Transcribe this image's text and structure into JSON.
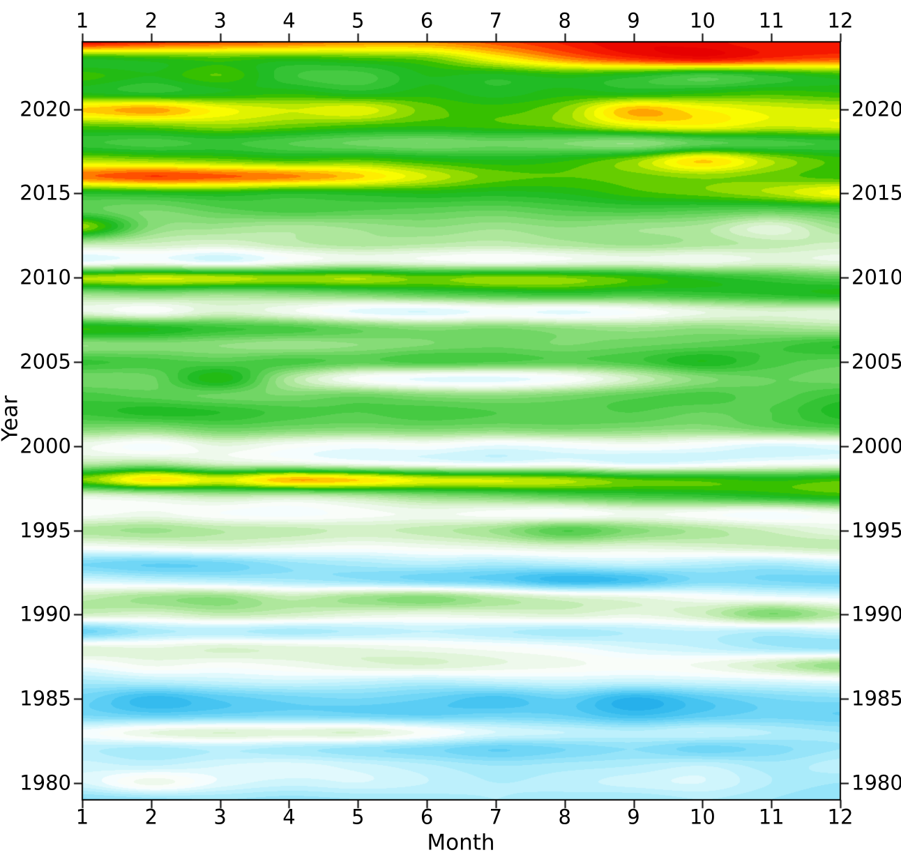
{
  "axes": {
    "x_label": "Month",
    "y_label": "Year",
    "x_tick_labels": [
      "1",
      "2",
      "3",
      "4",
      "5",
      "6",
      "7",
      "8",
      "9",
      "10",
      "11",
      "12"
    ],
    "y_tick_labels": [
      "1980",
      "1985",
      "1990",
      "1995",
      "2000",
      "2005",
      "2010",
      "2015",
      "2020"
    ],
    "y_tick_years": [
      1980,
      1985,
      1990,
      1995,
      2000,
      2005,
      2010,
      2015,
      2020
    ]
  },
  "chart_data": {
    "type": "heatmap",
    "xlabel": "Month",
    "ylabel": "Year",
    "x": [
      1,
      2,
      3,
      4,
      5,
      6,
      7,
      8,
      9,
      10,
      11,
      12
    ],
    "xlim": [
      1,
      12
    ],
    "ylim": [
      1979,
      2024
    ],
    "years": [
      1979,
      1980,
      1981,
      1982,
      1983,
      1984,
      1985,
      1986,
      1987,
      1988,
      1989,
      1990,
      1991,
      1992,
      1993,
      1994,
      1995,
      1996,
      1997,
      1998,
      1999,
      2000,
      2001,
      2002,
      2003,
      2004,
      2005,
      2006,
      2007,
      2008,
      2009,
      2010,
      2011,
      2012,
      2013,
      2014,
      2015,
      2016,
      2017,
      2018,
      2019,
      2020,
      2021,
      2022,
      2023,
      2024
    ],
    "values": [
      [
        -0.25,
        -0.22,
        -0.2,
        -0.22,
        -0.2,
        -0.18,
        -0.16,
        -0.18,
        -0.2,
        -0.16,
        -0.2,
        -0.24
      ],
      [
        -0.08,
        0.06,
        -0.05,
        -0.1,
        -0.08,
        -0.12,
        -0.16,
        -0.14,
        -0.1,
        -0.08,
        -0.16,
        -0.2
      ],
      [
        -0.1,
        -0.12,
        -0.08,
        -0.06,
        -0.1,
        -0.15,
        -0.2,
        -0.18,
        -0.16,
        -0.12,
        -0.18,
        -0.14
      ],
      [
        -0.15,
        -0.18,
        -0.15,
        -0.18,
        -0.22,
        -0.26,
        -0.32,
        -0.28,
        -0.24,
        -0.3,
        -0.26,
        -0.2
      ],
      [
        -0.02,
        0.08,
        0.12,
        0.1,
        0.12,
        0.02,
        -0.08,
        -0.12,
        -0.15,
        -0.12,
        -0.16,
        -0.2
      ],
      [
        -0.28,
        -0.32,
        -0.3,
        -0.28,
        -0.3,
        -0.32,
        -0.3,
        -0.32,
        -0.4,
        -0.34,
        -0.3,
        -0.32
      ],
      [
        -0.3,
        -0.42,
        -0.35,
        -0.3,
        -0.28,
        -0.32,
        -0.38,
        -0.32,
        -0.45,
        -0.35,
        -0.28,
        -0.25
      ],
      [
        -0.18,
        -0.15,
        -0.12,
        -0.1,
        -0.12,
        -0.15,
        -0.12,
        -0.1,
        -0.12,
        -0.1,
        -0.08,
        -0.05
      ],
      [
        -0.02,
        0.05,
        0.02,
        0.05,
        0.1,
        0.12,
        0.08,
        0.05,
        0.02,
        0.05,
        0.15,
        0.28
      ],
      [
        0.1,
        0.08,
        0.12,
        0.1,
        0.08,
        0.05,
        0.02,
        -0.02,
        -0.08,
        -0.12,
        -0.18,
        -0.22
      ],
      [
        -0.3,
        -0.18,
        -0.15,
        -0.18,
        -0.15,
        -0.12,
        -0.15,
        -0.18,
        -0.15,
        -0.12,
        -0.15,
        -0.1
      ],
      [
        0.15,
        0.12,
        0.18,
        0.15,
        0.1,
        0.08,
        0.1,
        0.12,
        0.08,
        0.15,
        0.32,
        0.2
      ],
      [
        0.18,
        0.25,
        0.28,
        0.18,
        0.25,
        0.3,
        0.2,
        0.12,
        0.08,
        0.02,
        -0.02,
        -0.05
      ],
      [
        -0.08,
        -0.12,
        -0.15,
        -0.18,
        -0.22,
        -0.28,
        -0.32,
        -0.42,
        -0.38,
        -0.26,
        -0.28,
        -0.3
      ],
      [
        -0.28,
        -0.32,
        -0.3,
        -0.22,
        -0.18,
        -0.15,
        -0.18,
        -0.15,
        -0.12,
        -0.15,
        -0.18,
        -0.12
      ],
      [
        0.02,
        0.05,
        0.08,
        0.05,
        0.02,
        0.05,
        0.08,
        0.12,
        0.1,
        0.12,
        0.15,
        0.18
      ],
      [
        0.22,
        0.25,
        0.2,
        0.18,
        0.15,
        0.18,
        0.25,
        0.4,
        0.3,
        0.22,
        0.15,
        0.08
      ],
      [
        0.02,
        0.05,
        0.0,
        -0.02,
        0.02,
        0.05,
        0.02,
        0.0,
        0.05,
        0.02,
        -0.02,
        0.05
      ],
      [
        0.08,
        0.12,
        0.18,
        0.15,
        0.2,
        0.28,
        0.32,
        0.38,
        0.42,
        0.45,
        0.5,
        0.55
      ],
      [
        0.64,
        0.84,
        0.74,
        0.88,
        0.84,
        0.74,
        0.72,
        0.68,
        0.6,
        0.58,
        0.54,
        0.58
      ],
      [
        0.18,
        0.22,
        0.12,
        0.08,
        0.02,
        -0.02,
        -0.05,
        -0.02,
        -0.08,
        -0.05,
        0.0,
        0.02
      ],
      [
        0.05,
        -0.02,
        0.08,
        0.02,
        -0.02,
        0.0,
        -0.05,
        -0.02,
        0.02,
        -0.02,
        -0.08,
        -0.05
      ],
      [
        0.3,
        0.28,
        0.35,
        0.32,
        0.3,
        0.32,
        0.3,
        0.32,
        0.3,
        0.28,
        0.34,
        0.38
      ],
      [
        0.45,
        0.5,
        0.48,
        0.42,
        0.4,
        0.42,
        0.4,
        0.38,
        0.4,
        0.36,
        0.4,
        0.5
      ],
      [
        0.42,
        0.38,
        0.35,
        0.32,
        0.35,
        0.3,
        0.28,
        0.32,
        0.38,
        0.42,
        0.38,
        0.45
      ],
      [
        0.32,
        0.35,
        0.55,
        0.22,
        0.02,
        -0.05,
        -0.06,
        0.0,
        0.15,
        0.3,
        0.36,
        0.34
      ],
      [
        0.45,
        0.42,
        0.4,
        0.42,
        0.38,
        0.42,
        0.4,
        0.38,
        0.42,
        0.52,
        0.42,
        0.38
      ],
      [
        0.28,
        0.3,
        0.28,
        0.25,
        0.28,
        0.32,
        0.35,
        0.32,
        0.35,
        0.38,
        0.42,
        0.48
      ],
      [
        0.56,
        0.52,
        0.45,
        0.42,
        0.35,
        0.3,
        0.32,
        0.28,
        0.25,
        0.28,
        0.25,
        0.22
      ],
      [
        0.08,
        0.02,
        0.12,
        0.05,
        -0.05,
        -0.08,
        -0.02,
        -0.05,
        0.0,
        0.08,
        0.12,
        0.1
      ],
      [
        0.25,
        0.28,
        0.25,
        0.28,
        0.32,
        0.38,
        0.42,
        0.45,
        0.42,
        0.45,
        0.48,
        0.52
      ],
      [
        0.68,
        0.72,
        0.7,
        0.66,
        0.68,
        0.62,
        0.66,
        0.64,
        0.58,
        0.5,
        0.44,
        0.38
      ],
      [
        -0.05,
        0.0,
        -0.08,
        0.02,
        0.08,
        0.05,
        0.02,
        0.05,
        0.08,
        0.05,
        0.1,
        0.08
      ],
      [
        0.18,
        0.15,
        0.12,
        0.18,
        0.22,
        0.2,
        0.18,
        0.22,
        0.25,
        0.22,
        0.18,
        0.15
      ],
      [
        0.66,
        0.3,
        0.25,
        0.22,
        0.25,
        0.28,
        0.25,
        0.28,
        0.25,
        0.22,
        0.1,
        0.25
      ],
      [
        0.38,
        0.32,
        0.38,
        0.42,
        0.4,
        0.38,
        0.36,
        0.4,
        0.42,
        0.4,
        0.38,
        0.42
      ],
      [
        0.48,
        0.5,
        0.52,
        0.48,
        0.5,
        0.52,
        0.5,
        0.52,
        0.58,
        0.62,
        0.68,
        0.78
      ],
      [
        0.95,
        1.0,
        0.97,
        0.93,
        0.85,
        0.72,
        0.62,
        0.6,
        0.62,
        0.65,
        0.62,
        0.58
      ],
      [
        0.68,
        0.65,
        0.62,
        0.58,
        0.6,
        0.55,
        0.52,
        0.55,
        0.65,
        0.84,
        0.68,
        0.58
      ],
      [
        0.45,
        0.42,
        0.45,
        0.4,
        0.35,
        0.32,
        0.35,
        0.32,
        0.28,
        0.38,
        0.42,
        0.45
      ],
      [
        0.6,
        0.62,
        0.66,
        0.62,
        0.58,
        0.56,
        0.58,
        0.62,
        0.74,
        0.78,
        0.72,
        0.74
      ],
      [
        0.85,
        0.9,
        0.78,
        0.72,
        0.75,
        0.62,
        0.58,
        0.65,
        0.88,
        0.8,
        0.74,
        0.72
      ],
      [
        0.52,
        0.48,
        0.52,
        0.55,
        0.5,
        0.54,
        0.5,
        0.54,
        0.52,
        0.55,
        0.58,
        0.56
      ],
      [
        0.58,
        0.52,
        0.6,
        0.45,
        0.42,
        0.52,
        0.5,
        0.54,
        0.5,
        0.42,
        0.48,
        0.55
      ],
      [
        0.52,
        0.55,
        0.58,
        0.55,
        0.58,
        0.62,
        0.78,
        0.92,
        1.02,
        1.08,
        1.02,
        0.98
      ],
      [
        1.08,
        1.02,
        0.98,
        0.96,
        0.92,
        0.92,
        0.98,
        1.05,
        1.12,
        1.1,
        1.05,
        1.08
      ]
    ],
    "colorscale": [
      [
        -0.5,
        "#18a6e8"
      ],
      [
        -0.4,
        "#3cc0f0"
      ],
      [
        -0.3,
        "#70d6f6"
      ],
      [
        -0.2,
        "#a0e8fa"
      ],
      [
        -0.12,
        "#c6f3fc"
      ],
      [
        -0.05,
        "#e6fafd"
      ],
      [
        0.0,
        "#ffffff"
      ],
      [
        0.06,
        "#eef9ec"
      ],
      [
        0.14,
        "#d4f1c8"
      ],
      [
        0.22,
        "#aee79c"
      ],
      [
        0.32,
        "#7cd96e"
      ],
      [
        0.42,
        "#46ca42"
      ],
      [
        0.52,
        "#18b81e"
      ],
      [
        0.58,
        "#36c000"
      ],
      [
        0.64,
        "#7ed400"
      ],
      [
        0.7,
        "#bce800"
      ],
      [
        0.76,
        "#f2f800"
      ],
      [
        0.8,
        "#ffff00"
      ],
      [
        0.86,
        "#ffc800"
      ],
      [
        0.92,
        "#ff9000"
      ],
      [
        0.98,
        "#ff5000"
      ],
      [
        1.04,
        "#fa2000"
      ],
      [
        1.12,
        "#e60000"
      ]
    ],
    "contour_step": 0.04,
    "grid": false,
    "legend": "none"
  }
}
